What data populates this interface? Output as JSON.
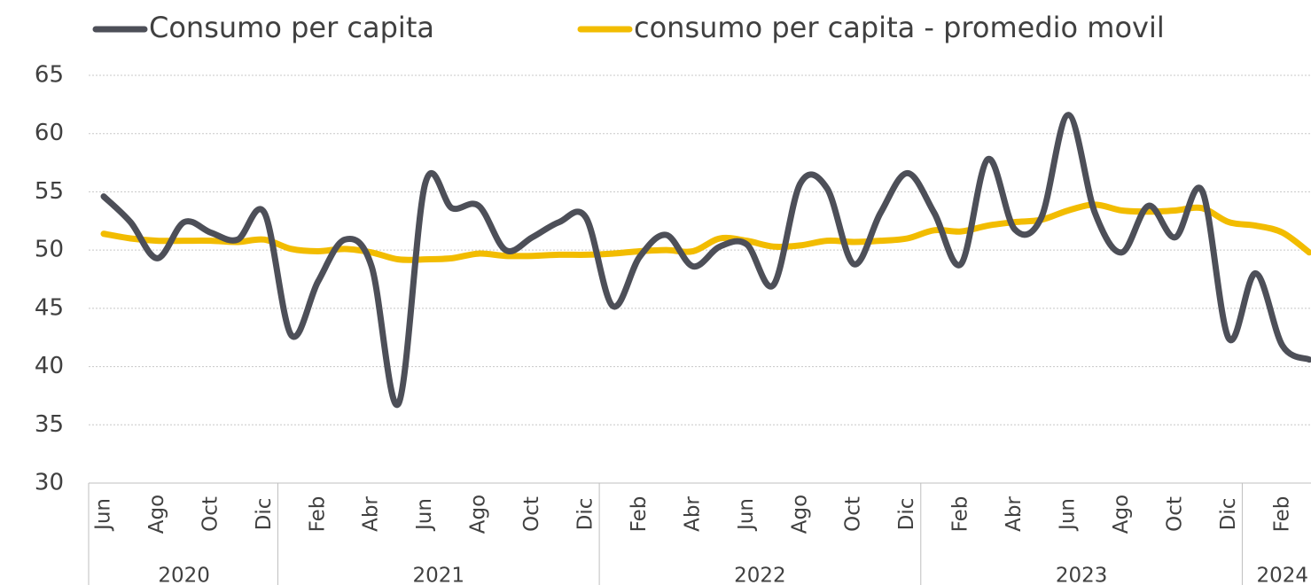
{
  "chart_data": {
    "type": "line",
    "categories": [
      "Jun",
      null,
      "Ago",
      null,
      "Oct",
      null,
      "Dic",
      null,
      "Feb",
      null,
      "Abr",
      null,
      "Jun",
      null,
      "Ago",
      null,
      "Oct",
      null,
      "Dic",
      null,
      "Feb",
      null,
      "Abr",
      null,
      "Jun",
      null,
      "Ago",
      null,
      "Oct",
      null,
      "Dic",
      null,
      "Feb",
      null,
      "Abr",
      null,
      "Jun",
      null,
      "Ago",
      null,
      "Oct",
      null,
      "Dic",
      null,
      "Feb",
      null
    ],
    "year_groups": [
      {
        "label": "2020",
        "months": 7
      },
      {
        "label": "2021",
        "months": 12
      },
      {
        "label": "2022",
        "months": 12
      },
      {
        "label": "2023",
        "months": 12
      },
      {
        "label": "2024",
        "months": 3
      }
    ],
    "series": [
      {
        "name": "Consumo per capita",
        "color": "#4d4f58",
        "values": [
          54.6,
          52.4,
          49.3,
          52.4,
          51.5,
          50.9,
          53.2,
          42.7,
          47.3,
          50.9,
          48.6,
          36.8,
          55.7,
          53.6,
          53.8,
          50.0,
          51.1,
          52.4,
          52.8,
          45.2,
          49.4,
          51.3,
          48.6,
          50.3,
          50.5,
          47.0,
          55.7,
          55.3,
          48.8,
          53.2,
          56.6,
          53.2,
          48.8,
          57.8,
          51.8,
          52.8,
          61.6,
          53.2,
          49.8,
          53.8,
          51.1,
          55.1,
          42.4,
          48.0,
          41.8,
          40.6
        ]
      },
      {
        "name": "consumo per capita - promedio movil",
        "color": "#f2bc00",
        "values": [
          51.4,
          51.0,
          50.8,
          50.8,
          50.8,
          50.7,
          50.9,
          50.1,
          49.9,
          50.1,
          49.8,
          49.2,
          49.2,
          49.3,
          49.7,
          49.5,
          49.5,
          49.6,
          49.6,
          49.7,
          49.9,
          50.0,
          49.9,
          51.0,
          50.8,
          50.3,
          50.4,
          50.8,
          50.7,
          50.8,
          51.0,
          51.7,
          51.6,
          52.1,
          52.4,
          52.6,
          53.4,
          53.9,
          53.4,
          53.3,
          53.4,
          53.6,
          52.4,
          52.1,
          51.5,
          49.8
        ]
      }
    ],
    "ylim": [
      30,
      65
    ],
    "yticks": [
      30,
      35,
      40,
      45,
      50,
      55,
      60,
      65
    ],
    "grid": true,
    "legend": "top"
  }
}
